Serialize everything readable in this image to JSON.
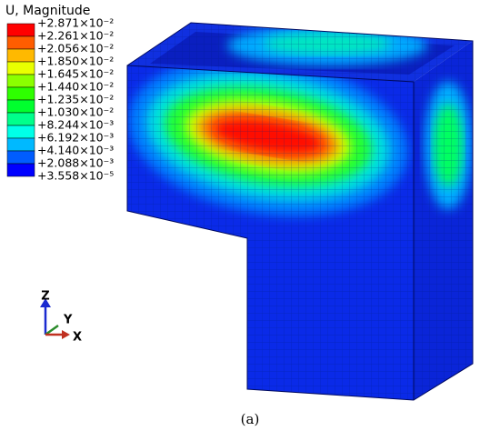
{
  "legend": {
    "title": "U, Magnitude",
    "labels": [
      "+2.871×10⁻²",
      "+2.261×10⁻²",
      "+2.056×10⁻²",
      "+1.850×10⁻²",
      "+1.645×10⁻²",
      "+1.440×10⁻²",
      "+1.235×10⁻²",
      "+1.030×10⁻²",
      "+8.244×10⁻³",
      "+6.192×10⁻³",
      "+4.140×10⁻³",
      "+2.088×10⁻³",
      "+3.558×10⁻⁵"
    ],
    "colors": [
      "#ff0000",
      "#ff5d00",
      "#ffb900",
      "#e9ff00",
      "#8bff00",
      "#2eff00",
      "#00ff2e",
      "#00ff8b",
      "#00ffe8",
      "#00b9ff",
      "#005dff",
      "#0000ff"
    ]
  },
  "triad": {
    "z": "Z",
    "y": "Y",
    "x": "X"
  },
  "caption": "(a)"
}
